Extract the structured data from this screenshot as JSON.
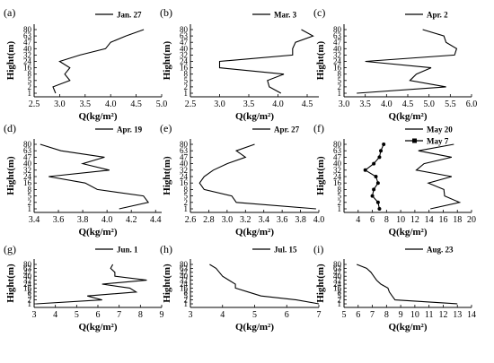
{
  "chart_data": [
    {
      "type": "line",
      "panel_label": "(a)",
      "xlabel": "Q(kg/m²)",
      "ylabel": "Hight(m)",
      "x_ticks": [
        2.5,
        3.0,
        3.5,
        4.0,
        4.5,
        5.0
      ],
      "x_tick_labels": [
        "2.5",
        "3.0",
        "3.5",
        "4.0",
        "4.5",
        "5.0"
      ],
      "xlim": [
        2.5,
        5.0
      ],
      "y_categories": [
        "1",
        "2",
        "5",
        "8",
        "16",
        "24",
        "32",
        "40",
        "47",
        "63",
        "80"
      ],
      "series": [
        {
          "name": "Jan. 27",
          "x": [
            2.92,
            2.87,
            3.2,
            3.1,
            3.2,
            3.0,
            3.4,
            3.9,
            4.0,
            4.3,
            4.65
          ],
          "y": [
            "1",
            "2",
            "5",
            "8",
            "16",
            "24",
            "32",
            "40",
            "47",
            "63",
            "80"
          ]
        }
      ]
    },
    {
      "type": "line",
      "panel_label": "(b)",
      "xlabel": "Q(kg/m²)",
      "ylabel": "Hight(m)",
      "x_ticks": [
        2.5,
        3.0,
        3.5,
        4.0,
        4.5
      ],
      "x_tick_labels": [
        "2.5",
        "3.0",
        "3.5",
        "4.0",
        "4.5"
      ],
      "xlim": [
        2.5,
        4.7
      ],
      "y_categories": [
        "1",
        "2",
        "5",
        "8",
        "16",
        "24",
        "32",
        "40",
        "47",
        "63",
        "80"
      ],
      "series": [
        {
          "name": "Mar. 3",
          "x": [
            4.05,
            3.85,
            3.82,
            4.1,
            3.0,
            3.0,
            4.25,
            4.25,
            4.3,
            4.6,
            4.4
          ],
          "y": [
            "1",
            "2",
            "5",
            "8",
            "16",
            "24",
            "32",
            "40",
            "47",
            "63",
            "80"
          ]
        }
      ]
    },
    {
      "type": "line",
      "panel_label": "(c)",
      "xlabel": "Q(kg/m²)",
      "ylabel": "Hight(m)",
      "x_ticks": [
        3.0,
        3.5,
        4.0,
        4.5,
        5.0,
        5.5,
        6.0
      ],
      "x_tick_labels": [
        "3.0",
        "3.5",
        "4.0",
        "4.5",
        "5.0",
        "5.5",
        "6.0"
      ],
      "xlim": [
        3.0,
        6.0
      ],
      "y_categories": [
        "1",
        "2",
        "5",
        "8",
        "16",
        "24",
        "32",
        "40",
        "47",
        "63",
        "80"
      ],
      "series": [
        {
          "name": "Apr. 2",
          "x": [
            3.3,
            5.4,
            4.55,
            4.7,
            5.05,
            3.5,
            5.6,
            5.65,
            5.4,
            5.35,
            4.85
          ],
          "y": [
            "1",
            "2",
            "5",
            "8",
            "16",
            "24",
            "32",
            "40",
            "47",
            "63",
            "80"
          ]
        }
      ]
    },
    {
      "type": "line",
      "panel_label": "(d)",
      "xlabel": "Q(kg/m²)",
      "ylabel": "Hight(m)",
      "x_ticks": [
        3.4,
        3.6,
        3.8,
        4.0,
        4.2,
        4.4
      ],
      "x_tick_labels": [
        "3.4",
        "3.6",
        "3.8",
        "4.0",
        "4.2",
        "4.4"
      ],
      "xlim": [
        3.4,
        4.45
      ],
      "y_categories": [
        "1",
        "2",
        "5",
        "8",
        "16",
        "24",
        "32",
        "40",
        "47",
        "63",
        "80"
      ],
      "series": [
        {
          "name": "Apr. 19",
          "x": [
            4.1,
            4.34,
            4.3,
            3.92,
            3.82,
            3.52,
            4.02,
            3.8,
            3.98,
            3.62,
            3.45
          ],
          "y": [
            "1",
            "2",
            "5",
            "8",
            "16",
            "24",
            "32",
            "40",
            "47",
            "63",
            "80"
          ]
        }
      ]
    },
    {
      "type": "line",
      "panel_label": "(e)",
      "xlabel": "Q(kg/m²)",
      "ylabel": "Hight(m)",
      "x_ticks": [
        2.6,
        2.8,
        3.0,
        3.2,
        3.4,
        3.6,
        3.8,
        4.0
      ],
      "x_tick_labels": [
        "2.6",
        "2.8",
        "3.0",
        "3.2",
        "3.4",
        "3.6",
        "3.8",
        "4.0"
      ],
      "xlim": [
        2.6,
        4.0
      ],
      "y_categories": [
        "1",
        "2",
        "5",
        "8",
        "16",
        "24",
        "32",
        "40",
        "47",
        "63",
        "80"
      ],
      "series": [
        {
          "name": "Apr. 27",
          "x": [
            3.97,
            3.1,
            3.05,
            2.75,
            2.7,
            2.75,
            2.85,
            3.0,
            3.2,
            3.1,
            3.3
          ],
          "y": [
            "1",
            "2",
            "5",
            "8",
            "16",
            "24",
            "32",
            "40",
            "47",
            "63",
            "80"
          ]
        }
      ]
    },
    {
      "type": "line",
      "panel_label": "(f)",
      "xlabel": "Q(kg/m²)",
      "ylabel": "Hight(m)",
      "x_ticks": [
        4,
        6,
        8,
        10,
        12,
        14,
        16,
        18,
        20
      ],
      "x_tick_labels": [
        "4",
        "6",
        "8",
        "10",
        "12",
        "14",
        "16",
        "18",
        "20"
      ],
      "xlim": [
        2,
        20
      ],
      "y_categories": [
        "1",
        "2",
        "5",
        "8",
        "16",
        "24",
        "32",
        "40",
        "47",
        "63",
        "80"
      ],
      "series": [
        {
          "name": "May 20",
          "x": [
            14.2,
            18.3,
            16.2,
            16.1,
            13.9,
            17.2,
            12.2,
            13.3,
            17.2,
            12.5,
            17.5
          ],
          "y": [
            "1",
            "2",
            "5",
            "8",
            "16",
            "24",
            "32",
            "40",
            "47",
            "63",
            "80"
          ]
        },
        {
          "name": "May 7",
          "x": [
            7.0,
            6.8,
            6.0,
            6.2,
            6.8,
            6.5,
            5.0,
            6.2,
            7.0,
            7.2,
            7.6
          ],
          "y": [
            "1",
            "2",
            "5",
            "8",
            "16",
            "24",
            "32",
            "40",
            "47",
            "63",
            "80"
          ]
        }
      ]
    },
    {
      "type": "line",
      "panel_label": "(g)",
      "xlabel": "Q(kg/m²)",
      "ylabel": "Hight(m)",
      "x_ticks": [
        3,
        4,
        5,
        6,
        7,
        8,
        9
      ],
      "x_tick_labels": [
        "3",
        "4",
        "5",
        "6",
        "7",
        "8",
        "9"
      ],
      "xlim": [
        3,
        9
      ],
      "y_categories": [
        "1",
        "2",
        "5",
        "8",
        "16",
        "24",
        "32",
        "40",
        "47",
        "63",
        "80"
      ],
      "series": [
        {
          "name": "Jun. 1",
          "x": [
            3.1,
            6.2,
            5.5,
            7.8,
            7.5,
            6.2,
            8.3,
            6.8,
            6.8,
            6.6,
            6.7
          ],
          "y": [
            "1",
            "2",
            "5",
            "8",
            "16",
            "24",
            "32",
            "40",
            "47",
            "63",
            "80"
          ]
        }
      ]
    },
    {
      "type": "line",
      "panel_label": "(h)",
      "xlabel": "Q(kg/m²)",
      "ylabel": "Hight(m)",
      "x_ticks": [
        3,
        4,
        5,
        6,
        7
      ],
      "x_tick_labels": [
        "3",
        "4",
        "5",
        "6",
        "7"
      ],
      "xlim": [
        3,
        7
      ],
      "y_categories": [
        "1",
        "2",
        "5",
        "8",
        "16",
        "24",
        "32",
        "40",
        "47",
        "63",
        "80"
      ],
      "series": [
        {
          "name": "Jul. 15",
          "x": [
            7.0,
            6.3,
            5.2,
            4.8,
            4.4,
            4.4,
            4.2,
            4.0,
            3.9,
            3.8,
            3.6
          ],
          "y": [
            "1",
            "2",
            "5",
            "8",
            "16",
            "24",
            "32",
            "40",
            "47",
            "63",
            "80"
          ]
        }
      ]
    },
    {
      "type": "line",
      "panel_label": "(i)",
      "xlabel": "Q(kg/m²)",
      "ylabel": "Hight(m)",
      "x_ticks": [
        5,
        6,
        7,
        8,
        9,
        10,
        11,
        12,
        13,
        14
      ],
      "x_tick_labels": [
        "5",
        "6",
        "7",
        "8",
        "9",
        "10",
        "11",
        "12",
        "13",
        "14"
      ],
      "xlim": [
        5,
        14
      ],
      "y_categories": [
        "1",
        "2",
        "5",
        "8",
        "16",
        "24",
        "32",
        "40",
        "47",
        "63",
        "80"
      ],
      "series": [
        {
          "name": "Aug. 23",
          "x": [
            13.0,
            8.6,
            8.4,
            8.2,
            8.1,
            7.6,
            7.3,
            7.1,
            6.9,
            6.6,
            5.9
          ],
          "y": [
            "1",
            "2",
            "5",
            "8",
            "16",
            "24",
            "32",
            "40",
            "47",
            "63",
            "80"
          ]
        }
      ]
    }
  ]
}
